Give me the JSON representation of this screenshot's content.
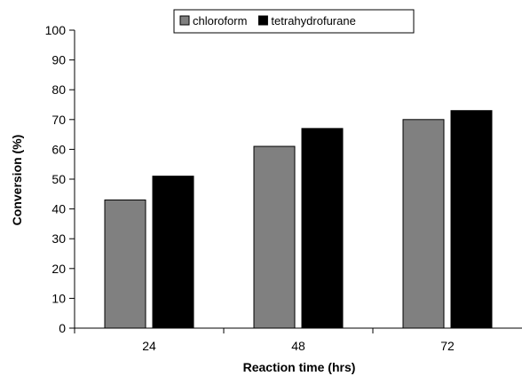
{
  "chart_data": {
    "type": "bar",
    "categories": [
      "24",
      "48",
      "72"
    ],
    "series": [
      {
        "name": "chloroform",
        "values": [
          43,
          61,
          70
        ],
        "color": "#808080"
      },
      {
        "name": "tetrahydrofurane",
        "values": [
          51,
          67,
          73
        ],
        "color": "#000000"
      }
    ],
    "xlabel": "Reaction time (hrs)",
    "ylabel": "Conversion (%)",
    "ylim": [
      0,
      100
    ],
    "yticks": [
      0,
      10,
      20,
      30,
      40,
      50,
      60,
      70,
      80,
      90,
      100
    ],
    "grid": false,
    "legend_position": "top"
  }
}
